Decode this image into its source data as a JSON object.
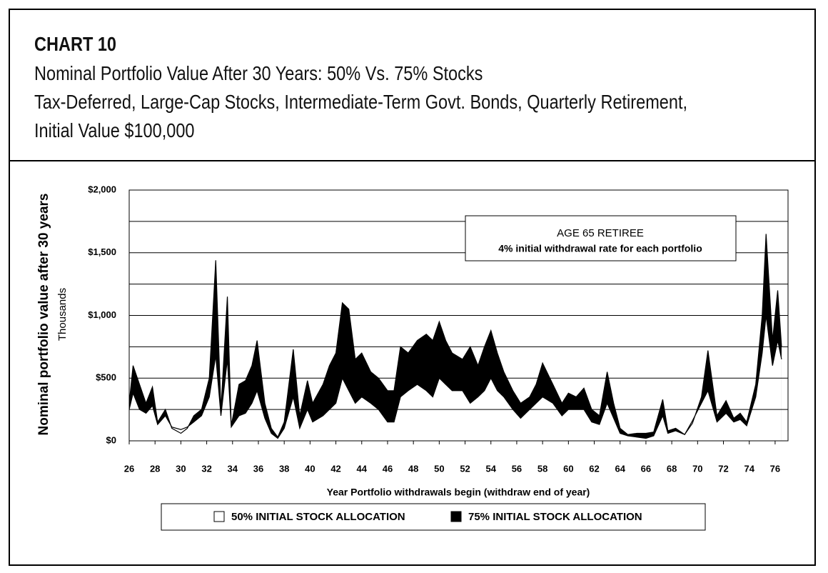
{
  "chart_data": {
    "type": "area-band",
    "chart_label": "CHART 10",
    "title": "Nominal Portfolio Value After 30 Years: 50% Vs. 75% Stocks",
    "subtitle": [
      "Tax-Deferred, Large-Cap Stocks, Intermediate-Term Govt. Bonds, Quarterly Retirement,",
      "Initial Value $100,000"
    ],
    "y_label": "Nominal portfolio value after 30 years",
    "y_unit": "Thousands",
    "x_label": "Year Portfolio withdrawals begin (withdraw end of year)",
    "annotation": [
      "AGE 65 RETIREE",
      "4% initial withdrawal rate for each portfolio"
    ],
    "xlim": [
      26,
      77
    ],
    "xticks": [
      26,
      28,
      30,
      32,
      34,
      36,
      38,
      40,
      42,
      44,
      46,
      48,
      50,
      52,
      54,
      56,
      58,
      60,
      62,
      64,
      66,
      68,
      70,
      72,
      74,
      76
    ],
    "ylim": [
      0,
      2000
    ],
    "yticks": [
      {
        "value": 0,
        "label": "$0"
      },
      {
        "value": 500,
        "label": "$500"
      },
      {
        "value": 1000,
        "label": "$1,000"
      },
      {
        "value": 1500,
        "label": "$1,500"
      },
      {
        "value": 2000,
        "label": "$2,000"
      }
    ],
    "minor_yticks": [
      250,
      750,
      1250,
      1750
    ],
    "grid": true,
    "x": [
      26,
      26.3,
      26.8,
      27.3,
      27.8,
      28.2,
      28.8,
      29.3,
      30,
      30.5,
      31,
      31.6,
      32.2,
      32.7,
      33.1,
      33.6,
      33.9,
      34.5,
      35,
      35.5,
      35.9,
      36.5,
      37,
      37.5,
      38,
      38.7,
      39.2,
      39.8,
      40.2,
      41,
      41.5,
      42,
      42.5,
      43,
      43.5,
      44,
      44.7,
      45.3,
      46,
      46.5,
      47,
      47.6,
      48.3,
      49,
      49.5,
      50,
      50.5,
      51,
      51.8,
      52.4,
      53,
      53.5,
      54,
      54.5,
      55,
      55.7,
      56.3,
      57,
      57.5,
      58,
      58.8,
      59.5,
      60,
      60.6,
      61.2,
      61.8,
      62.4,
      63,
      63.5,
      64,
      64.6,
      65.3,
      66,
      66.6,
      67.3,
      67.7,
      68.3,
      69,
      69.6,
      70.3,
      70.8,
      71.5,
      72.2,
      72.8,
      73.3,
      73.8,
      74.5,
      75,
      75.3,
      75.8,
      76.2,
      76.5
    ],
    "series": [
      {
        "name": "50% INITIAL STOCK ALLOCATION",
        "color": "#ffffff",
        "values": [
          250,
          380,
          250,
          220,
          280,
          130,
          200,
          110,
          90,
          110,
          150,
          200,
          350,
          680,
          200,
          650,
          110,
          200,
          220,
          300,
          400,
          180,
          60,
          20,
          100,
          350,
          100,
          250,
          150,
          200,
          250,
          300,
          500,
          400,
          300,
          350,
          300,
          250,
          150,
          150,
          350,
          400,
          450,
          400,
          350,
          500,
          450,
          400,
          400,
          300,
          350,
          400,
          500,
          400,
          350,
          250,
          180,
          250,
          300,
          350,
          300,
          200,
          250,
          250,
          250,
          150,
          130,
          300,
          180,
          60,
          40,
          30,
          20,
          40,
          200,
          60,
          80,
          50,
          160,
          300,
          400,
          150,
          220,
          150,
          170,
          120,
          350,
          700,
          1000,
          600,
          800,
          650
        ]
      },
      {
        "name": "75% INITIAL STOCK ALLOCATION",
        "color": "#000000",
        "values": [
          300,
          600,
          450,
          300,
          430,
          150,
          250,
          100,
          60,
          100,
          200,
          250,
          500,
          1440,
          250,
          1150,
          120,
          450,
          480,
          600,
          800,
          300,
          100,
          30,
          150,
          730,
          200,
          480,
          300,
          450,
          600,
          700,
          1100,
          1050,
          650,
          700,
          550,
          500,
          400,
          400,
          750,
          700,
          800,
          850,
          800,
          950,
          800,
          700,
          650,
          750,
          600,
          750,
          880,
          700,
          550,
          400,
          300,
          350,
          450,
          620,
          450,
          300,
          380,
          350,
          420,
          250,
          200,
          550,
          300,
          100,
          50,
          60,
          60,
          70,
          330,
          80,
          100,
          50,
          140,
          350,
          720,
          200,
          320,
          180,
          220,
          150,
          450,
          1000,
          1650,
          800,
          1200,
          750
        ]
      }
    ]
  }
}
